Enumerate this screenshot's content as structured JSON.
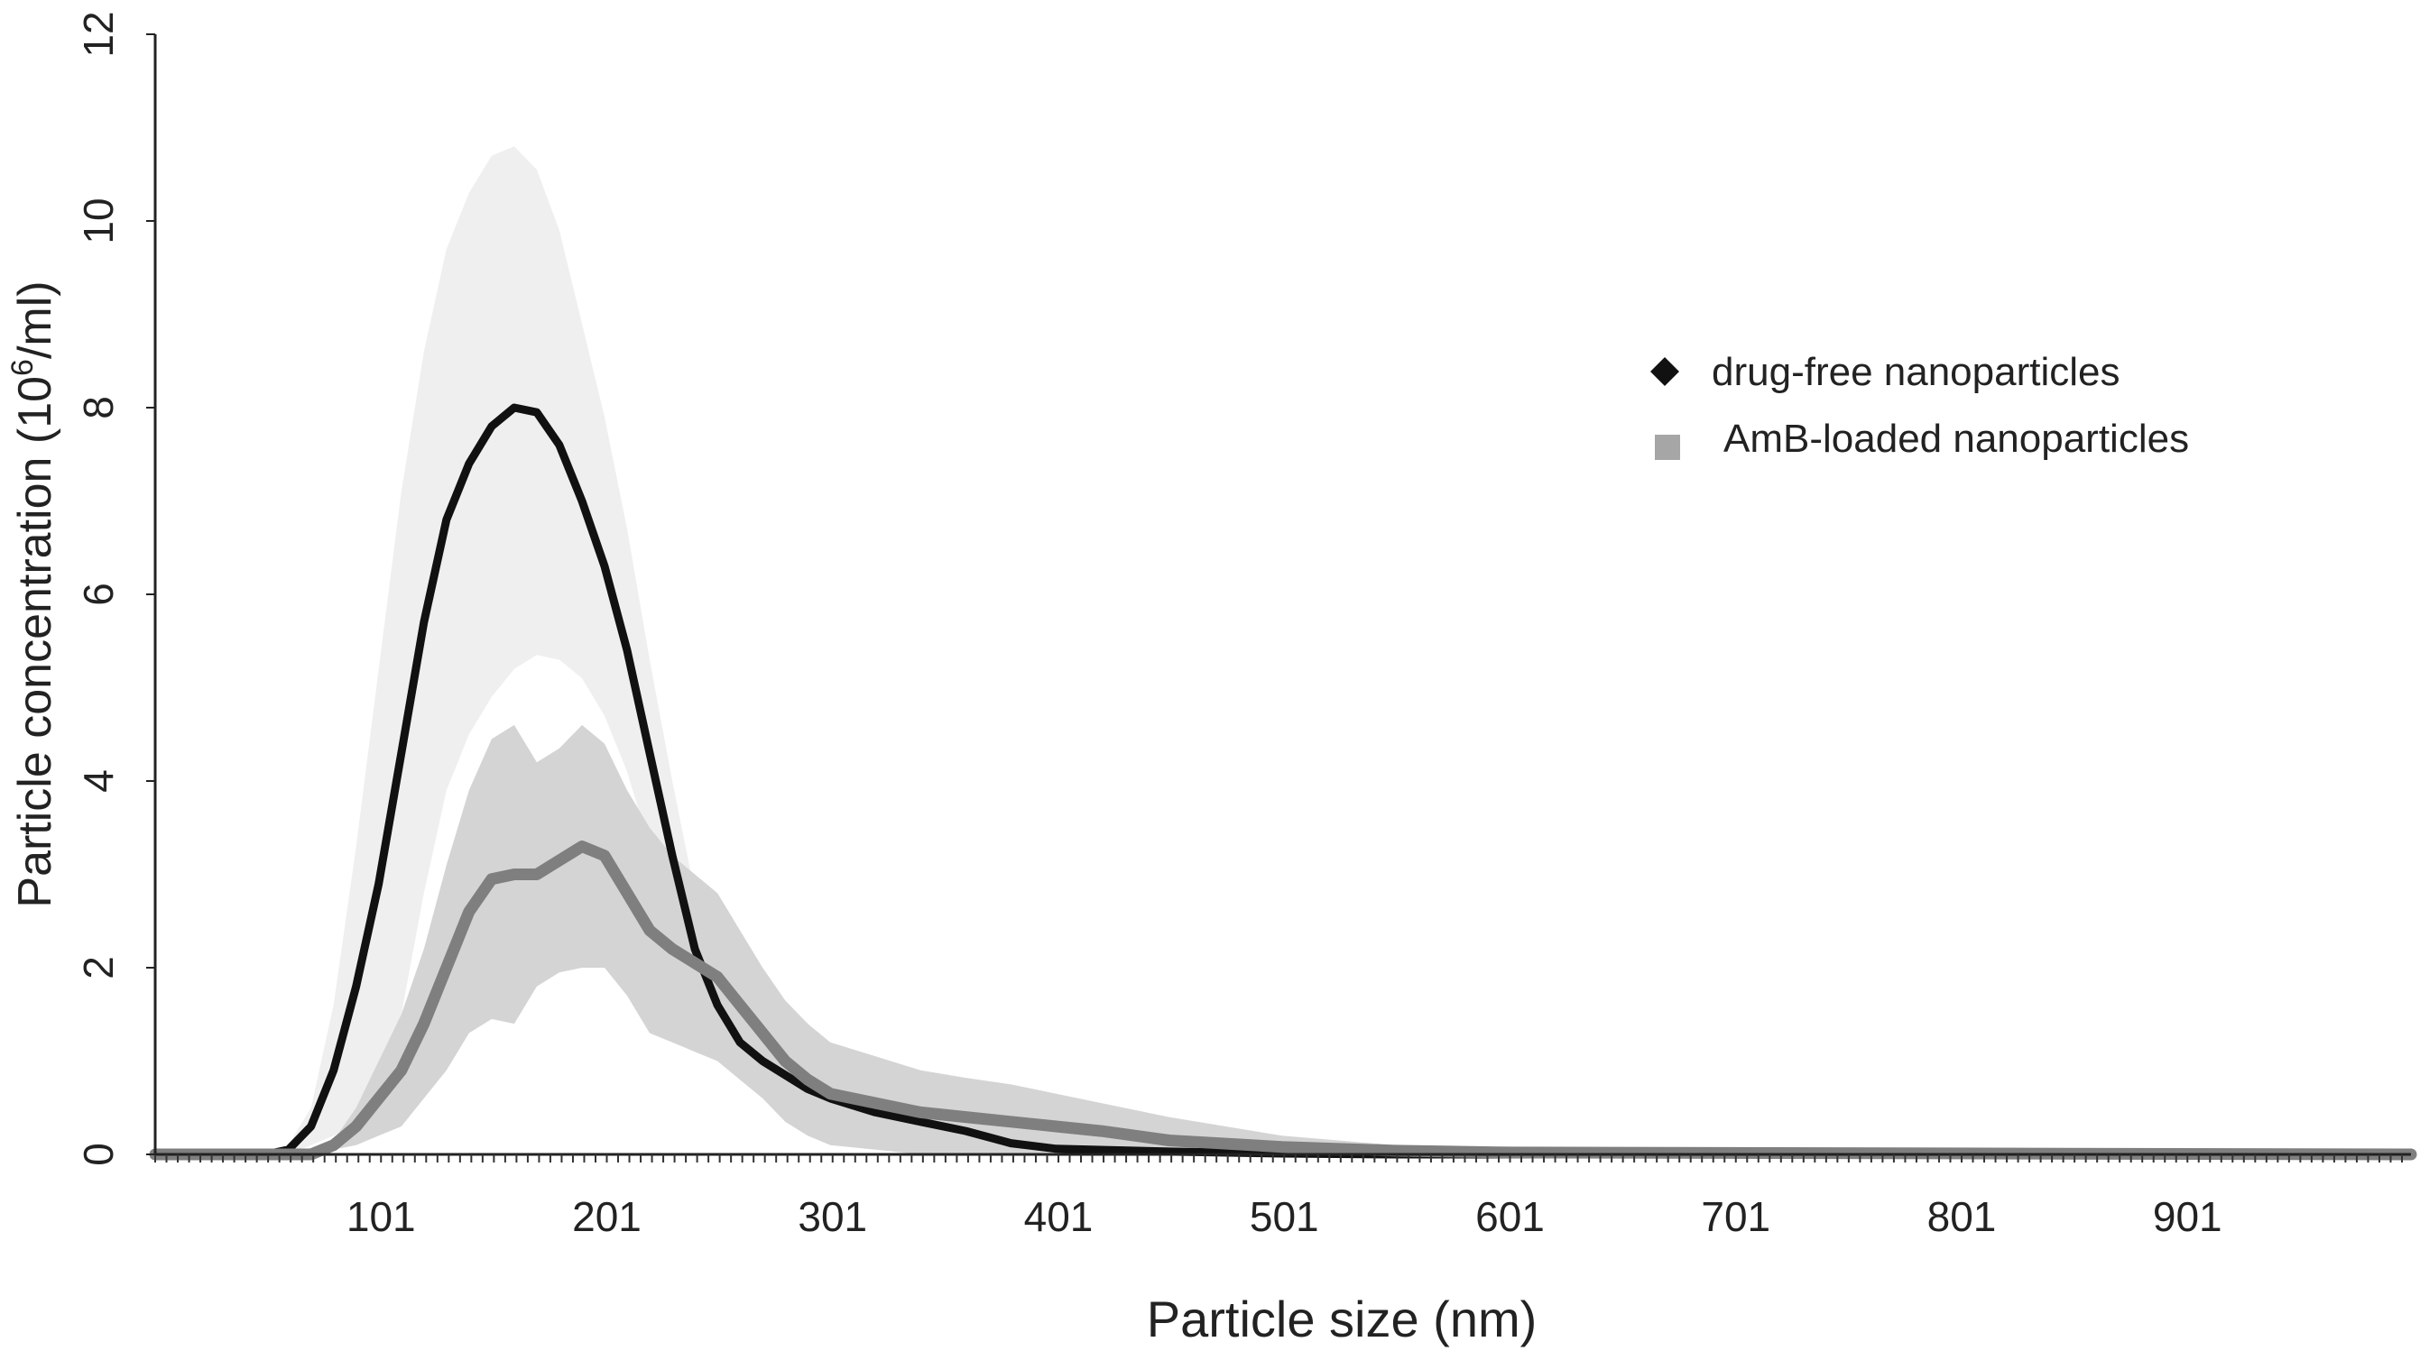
{
  "chart_data": {
    "type": "line",
    "title": "",
    "xlabel": "Particle size (nm)",
    "ylabel": {
      "main": "Particle concentration (10",
      "sup": "6",
      "tail": "/ml)"
    },
    "xlim": [
      1,
      1000
    ],
    "ylim": [
      0,
      12
    ],
    "x_tick_labels": [
      101,
      201,
      301,
      401,
      501,
      601,
      701,
      801,
      901
    ],
    "y_tick_labels": [
      0,
      2,
      4,
      6,
      8,
      10,
      12
    ],
    "legend_position": "right-upper",
    "colors": {
      "drug_free": "#111111",
      "amb_loaded": "#7f7f7f",
      "band_drug_free": "#efefef",
      "band_amb_loaded": "#d4d4d4",
      "axis": "#222222"
    },
    "series": [
      {
        "name": "drug-free nanoparticles",
        "marker": "diamond",
        "x": [
          1,
          50,
          60,
          70,
          80,
          90,
          100,
          110,
          120,
          130,
          140,
          150,
          160,
          170,
          180,
          190,
          200,
          210,
          220,
          230,
          240,
          250,
          260,
          270,
          280,
          290,
          300,
          320,
          340,
          360,
          380,
          400,
          450,
          500,
          550,
          600,
          1000
        ],
        "y": [
          0,
          0,
          0.05,
          0.3,
          0.9,
          1.8,
          2.9,
          4.3,
          5.7,
          6.8,
          7.4,
          7.8,
          8.0,
          7.95,
          7.6,
          7.0,
          6.3,
          5.4,
          4.3,
          3.2,
          2.2,
          1.6,
          1.2,
          1.0,
          0.85,
          0.7,
          0.6,
          0.45,
          0.35,
          0.25,
          0.12,
          0.06,
          0.03,
          0.01,
          0,
          0,
          0
        ],
        "error": [
          0,
          0,
          0.05,
          0.2,
          0.7,
          1.5,
          2.3,
          2.8,
          2.9,
          2.9,
          2.9,
          2.9,
          2.8,
          2.6,
          2.3,
          1.9,
          1.6,
          1.3,
          1.0,
          0.8,
          0.6,
          0.5,
          0.4,
          0.35,
          0.3,
          0.25,
          0.2,
          0.15,
          0.12,
          0.1,
          0.06,
          0.04,
          0.02,
          0,
          0,
          0,
          0
        ]
      },
      {
        "name": "AmB-loaded nanoparticles",
        "marker": "square",
        "x": [
          1,
          70,
          80,
          90,
          100,
          110,
          120,
          130,
          140,
          150,
          160,
          170,
          180,
          190,
          200,
          210,
          220,
          230,
          240,
          250,
          260,
          270,
          280,
          290,
          300,
          320,
          340,
          360,
          380,
          400,
          420,
          450,
          500,
          550,
          600,
          1000
        ],
        "y": [
          0,
          0,
          0.1,
          0.3,
          0.6,
          0.9,
          1.4,
          2.0,
          2.6,
          2.95,
          3.0,
          3.0,
          3.15,
          3.3,
          3.2,
          2.8,
          2.4,
          2.2,
          2.05,
          1.9,
          1.6,
          1.3,
          1.0,
          0.8,
          0.65,
          0.55,
          0.45,
          0.4,
          0.35,
          0.3,
          0.25,
          0.15,
          0.08,
          0.04,
          0.02,
          0
        ],
        "error": [
          0,
          0,
          0.05,
          0.2,
          0.4,
          0.6,
          0.8,
          1.1,
          1.3,
          1.5,
          1.6,
          1.2,
          1.2,
          1.3,
          1.2,
          1.1,
          1.1,
          1.0,
          0.95,
          0.9,
          0.8,
          0.7,
          0.65,
          0.6,
          0.55,
          0.5,
          0.45,
          0.42,
          0.4,
          0.35,
          0.3,
          0.25,
          0.12,
          0.06,
          0.03,
          0
        ]
      }
    ]
  }
}
